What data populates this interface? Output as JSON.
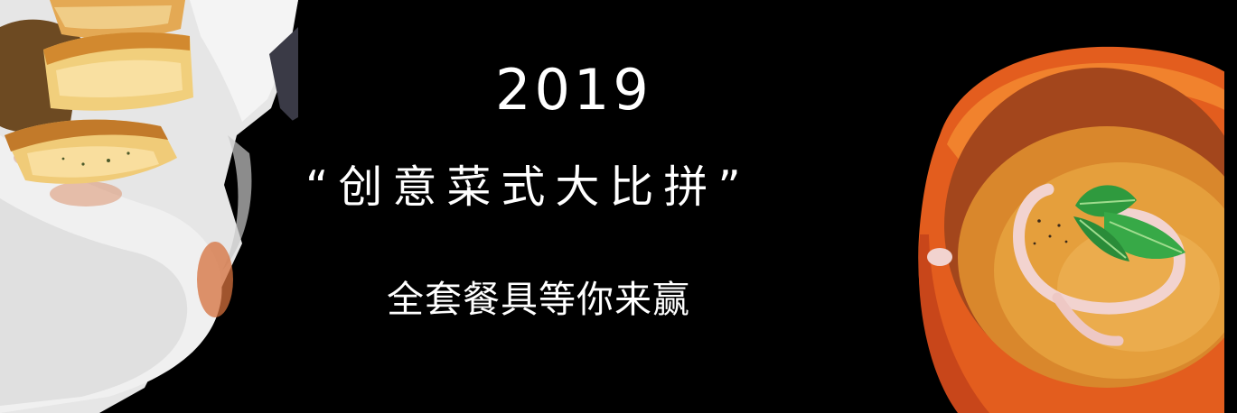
{
  "banner": {
    "background_color": "#000000",
    "year": "2019",
    "headline": "“创意菜式大比拼”",
    "subline": "全套餐具等你来赢",
    "left_photo": "bread-in-napkin-basket",
    "right_photo": "pumpkin-soup-bowl-with-mint"
  }
}
